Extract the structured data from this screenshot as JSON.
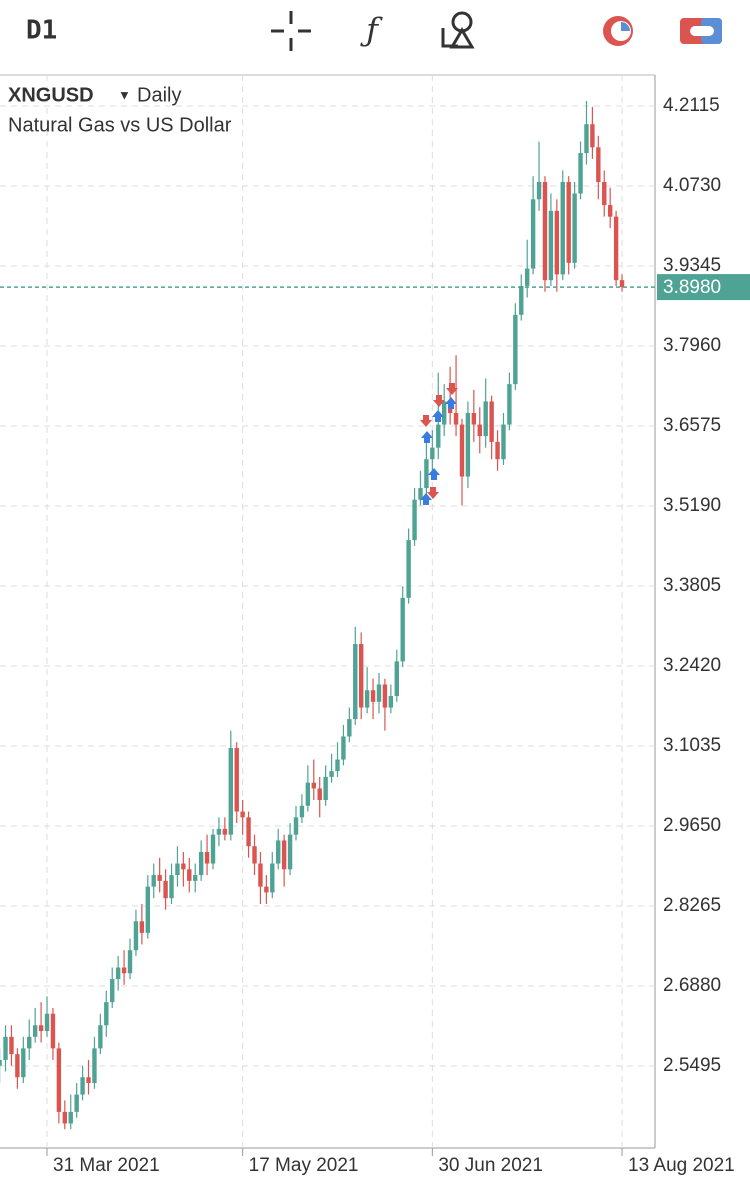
{
  "toolbar": {
    "timeframe": "D1"
  },
  "chart_data": {
    "type": "candlestick",
    "symbol": "XNGUSD",
    "period": "Daily",
    "description": "Natural Gas vs US Dollar",
    "x": [
      "2021-03-19",
      "2021-03-22",
      "2021-03-23",
      "2021-03-24",
      "2021-03-25",
      "2021-03-26",
      "2021-03-29",
      "2021-03-30",
      "2021-03-31",
      "2021-04-01",
      "2021-04-02",
      "2021-04-05",
      "2021-04-06",
      "2021-04-07",
      "2021-04-08",
      "2021-04-09",
      "2021-04-12",
      "2021-04-13",
      "2021-04-14",
      "2021-04-15",
      "2021-04-16",
      "2021-04-19",
      "2021-04-20",
      "2021-04-21",
      "2021-04-22",
      "2021-04-23",
      "2021-04-26",
      "2021-04-27",
      "2021-04-28",
      "2021-04-29",
      "2021-04-30",
      "2021-05-03",
      "2021-05-04",
      "2021-05-05",
      "2021-05-06",
      "2021-05-07",
      "2021-05-10",
      "2021-05-11",
      "2021-05-12",
      "2021-05-13",
      "2021-05-14",
      "2021-05-17",
      "2021-05-18",
      "2021-05-19",
      "2021-05-20",
      "2021-05-21",
      "2021-05-24",
      "2021-05-25",
      "2021-05-26",
      "2021-05-27",
      "2021-05-28",
      "2021-05-31",
      "2021-06-01",
      "2021-06-02",
      "2021-06-03",
      "2021-06-04",
      "2021-06-07",
      "2021-06-08",
      "2021-06-09",
      "2021-06-10",
      "2021-06-11",
      "2021-06-14",
      "2021-06-15",
      "2021-06-16",
      "2021-06-17",
      "2021-06-18",
      "2021-06-21",
      "2021-06-22",
      "2021-06-23",
      "2021-06-24",
      "2021-06-25",
      "2021-06-28",
      "2021-06-29",
      "2021-06-30",
      "2021-07-01",
      "2021-07-02",
      "2021-07-05",
      "2021-07-06",
      "2021-07-07",
      "2021-07-08",
      "2021-07-09",
      "2021-07-12",
      "2021-07-13",
      "2021-07-14",
      "2021-07-15",
      "2021-07-16",
      "2021-07-19",
      "2021-07-20",
      "2021-07-21",
      "2021-07-22",
      "2021-07-23",
      "2021-07-26",
      "2021-07-27",
      "2021-07-28",
      "2021-07-29",
      "2021-07-30",
      "2021-08-02",
      "2021-08-03",
      "2021-08-04",
      "2021-08-05",
      "2021-08-06",
      "2021-08-09",
      "2021-08-10",
      "2021-08-11",
      "2021-08-12",
      "2021-08-13"
    ],
    "open": [
      2.55,
      2.56,
      2.6,
      2.57,
      2.53,
      2.58,
      2.6,
      2.62,
      2.61,
      2.64,
      2.58,
      2.47,
      2.45,
      2.47,
      2.5,
      2.53,
      2.52,
      2.58,
      2.62,
      2.66,
      2.7,
      2.72,
      2.71,
      2.75,
      2.8,
      2.78,
      2.86,
      2.88,
      2.87,
      2.84,
      2.88,
      2.9,
      2.89,
      2.87,
      2.88,
      2.92,
      2.9,
      2.95,
      2.96,
      2.95,
      3.1,
      2.99,
      2.98,
      2.93,
      2.9,
      2.86,
      2.85,
      2.9,
      2.94,
      2.89,
      2.95,
      2.98,
      3.0,
      3.04,
      3.03,
      3.01,
      3.05,
      3.06,
      3.08,
      3.12,
      3.15,
      3.28,
      3.17,
      3.2,
      3.18,
      3.21,
      3.17,
      3.19,
      3.25,
      3.36,
      3.46,
      3.53,
      3.55,
      3.6,
      3.62,
      3.66,
      3.7,
      3.68,
      3.66,
      3.57,
      3.68,
      3.66,
      3.64,
      3.7,
      3.63,
      3.6,
      3.66,
      3.73,
      3.85,
      3.9,
      3.93,
      4.05,
      4.08,
      3.91,
      4.03,
      3.92,
      4.08,
      3.94,
      4.06,
      4.13,
      4.18,
      4.14,
      4.08,
      4.04,
      4.02,
      3.91
    ],
    "high": [
      2.58,
      2.62,
      2.62,
      2.58,
      2.6,
      2.63,
      2.65,
      2.66,
      2.67,
      2.65,
      2.59,
      2.49,
      2.5,
      2.52,
      2.55,
      2.56,
      2.6,
      2.64,
      2.68,
      2.72,
      2.74,
      2.75,
      2.77,
      2.82,
      2.83,
      2.88,
      2.9,
      2.91,
      2.89,
      2.9,
      2.93,
      2.92,
      2.91,
      2.9,
      2.94,
      2.95,
      2.96,
      2.98,
      2.98,
      3.13,
      3.11,
      3.01,
      2.99,
      2.95,
      2.92,
      2.88,
      2.92,
      2.96,
      2.95,
      2.97,
      3.0,
      3.02,
      3.07,
      3.08,
      3.05,
      3.07,
      3.09,
      3.11,
      3.14,
      3.17,
      3.31,
      3.3,
      3.24,
      3.22,
      3.23,
      3.22,
      3.21,
      3.27,
      3.38,
      3.48,
      3.55,
      3.58,
      3.63,
      3.65,
      3.75,
      3.73,
      3.76,
      3.78,
      3.67,
      3.7,
      3.72,
      3.69,
      3.74,
      3.71,
      3.65,
      3.68,
      3.75,
      3.87,
      3.92,
      3.98,
      4.09,
      4.15,
      4.09,
      4.06,
      4.05,
      4.1,
      4.09,
      4.08,
      4.15,
      4.22,
      4.21,
      4.16,
      4.1,
      4.07,
      4.03,
      3.92
    ],
    "low": [
      2.52,
      2.54,
      2.55,
      2.51,
      2.52,
      2.56,
      2.59,
      2.59,
      2.6,
      2.56,
      2.45,
      2.44,
      2.44,
      2.46,
      2.49,
      2.5,
      2.51,
      2.57,
      2.6,
      2.65,
      2.68,
      2.69,
      2.7,
      2.74,
      2.76,
      2.77,
      2.84,
      2.85,
      2.82,
      2.83,
      2.86,
      2.86,
      2.85,
      2.85,
      2.87,
      2.88,
      2.89,
      2.93,
      2.94,
      2.94,
      2.97,
      2.95,
      2.91,
      2.88,
      2.83,
      2.83,
      2.84,
      2.89,
      2.86,
      2.88,
      2.94,
      2.97,
      2.99,
      3.01,
      2.98,
      3.0,
      3.04,
      3.05,
      3.07,
      3.11,
      3.14,
      3.15,
      3.16,
      3.15,
      3.16,
      3.13,
      3.16,
      3.18,
      3.24,
      3.35,
      3.45,
      3.52,
      3.54,
      3.58,
      3.6,
      3.64,
      3.66,
      3.64,
      3.52,
      3.55,
      3.63,
      3.61,
      3.62,
      3.6,
      3.58,
      3.59,
      3.65,
      3.72,
      3.84,
      3.88,
      3.92,
      4.03,
      3.89,
      3.9,
      3.89,
      3.91,
      3.92,
      3.93,
      4.05,
      4.11,
      4.12,
      4.05,
      4.02,
      4.0,
      3.9,
      3.89
    ],
    "close": [
      2.56,
      2.6,
      2.57,
      2.53,
      2.58,
      2.6,
      2.62,
      2.61,
      2.64,
      2.58,
      2.47,
      2.45,
      2.47,
      2.5,
      2.53,
      2.52,
      2.58,
      2.62,
      2.66,
      2.7,
      2.72,
      2.71,
      2.75,
      2.8,
      2.78,
      2.86,
      2.88,
      2.87,
      2.84,
      2.88,
      2.9,
      2.89,
      2.87,
      2.88,
      2.92,
      2.9,
      2.95,
      2.96,
      2.95,
      3.1,
      2.99,
      2.98,
      2.93,
      2.9,
      2.86,
      2.85,
      2.9,
      2.94,
      2.89,
      2.95,
      2.98,
      3.0,
      3.04,
      3.03,
      3.01,
      3.05,
      3.06,
      3.08,
      3.12,
      3.15,
      3.28,
      3.17,
      3.2,
      3.18,
      3.21,
      3.17,
      3.19,
      3.25,
      3.36,
      3.46,
      3.53,
      3.55,
      3.6,
      3.62,
      3.66,
      3.7,
      3.68,
      3.66,
      3.57,
      3.68,
      3.66,
      3.64,
      3.7,
      3.63,
      3.6,
      3.66,
      3.73,
      3.85,
      3.9,
      3.93,
      4.05,
      4.08,
      3.91,
      4.03,
      3.92,
      4.08,
      3.94,
      4.06,
      4.13,
      4.18,
      4.14,
      4.08,
      4.04,
      4.02,
      3.91,
      3.898
    ],
    "up_color": "#4fa394",
    "down_color": "#dc5450",
    "current_price": {
      "value": 3.898,
      "label": "3.8980"
    },
    "current_color": "#4fa394",
    "ylim": [
      2.4075,
      4.2652
    ],
    "yticks": [
      4.2115,
      {
        "value": 4.073,
        "label": "4.0730"
      },
      3.9345,
      {
        "value": 3.796,
        "label": "3.7960"
      },
      3.6575,
      {
        "value": 3.519,
        "label": "3.5190"
      },
      3.3805,
      {
        "value": 3.242,
        "label": "3.2420"
      },
      3.1035,
      {
        "value": 2.965,
        "label": "2.9650"
      },
      2.8265,
      {
        "value": 2.688,
        "label": "2.6880"
      },
      2.5495
    ],
    "xticks": [
      {
        "value": "2021-03-31",
        "label": "31 Mar 2021"
      },
      {
        "value": "2021-05-17",
        "label": "17 May 2021"
      },
      {
        "value": "2021-06-30",
        "label": "30 Jun 2021"
      },
      {
        "value": "2021-08-13",
        "label": "13 Aug 2021"
      }
    ],
    "grid": true
  }
}
